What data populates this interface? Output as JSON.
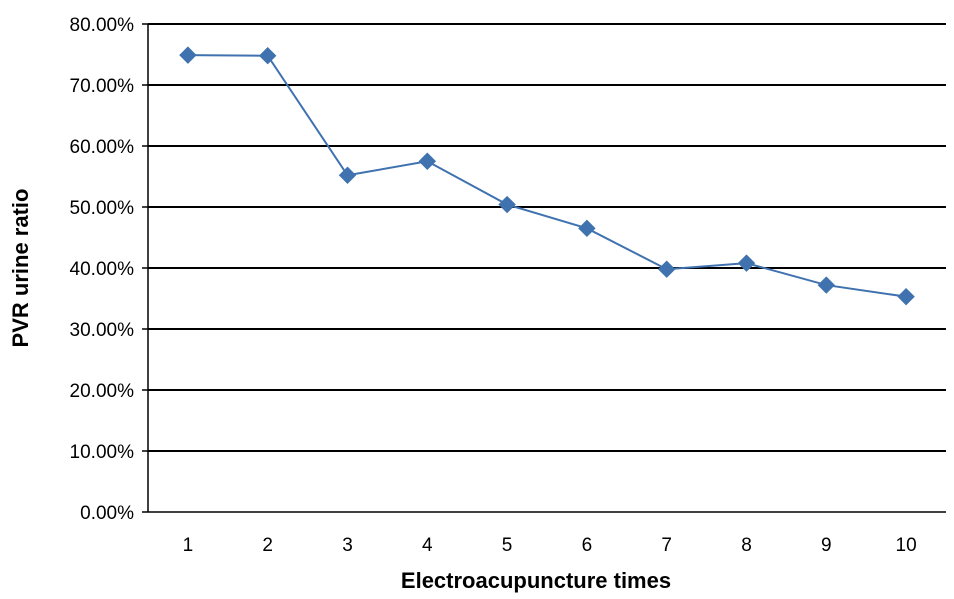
{
  "chart_data": {
    "type": "line",
    "xlabel": "Electroacupuncture times",
    "ylabel": "PVR urine ratio",
    "x": [
      1,
      2,
      3,
      4,
      5,
      6,
      7,
      8,
      9,
      10
    ],
    "ylim": [
      0,
      0.8
    ],
    "y_ticks": [
      "0.00%",
      "10.00%",
      "20.00%",
      "30.00%",
      "40.00%",
      "50.00%",
      "60.00%",
      "70.00%",
      "80.00%"
    ],
    "grid": true,
    "legend": "none",
    "series": [
      {
        "values": [
          0.749,
          0.748,
          0.552,
          0.575,
          0.504,
          0.465,
          0.398,
          0.408,
          0.372,
          0.353
        ],
        "color": "#3f72af",
        "marker": "diamond"
      }
    ]
  }
}
